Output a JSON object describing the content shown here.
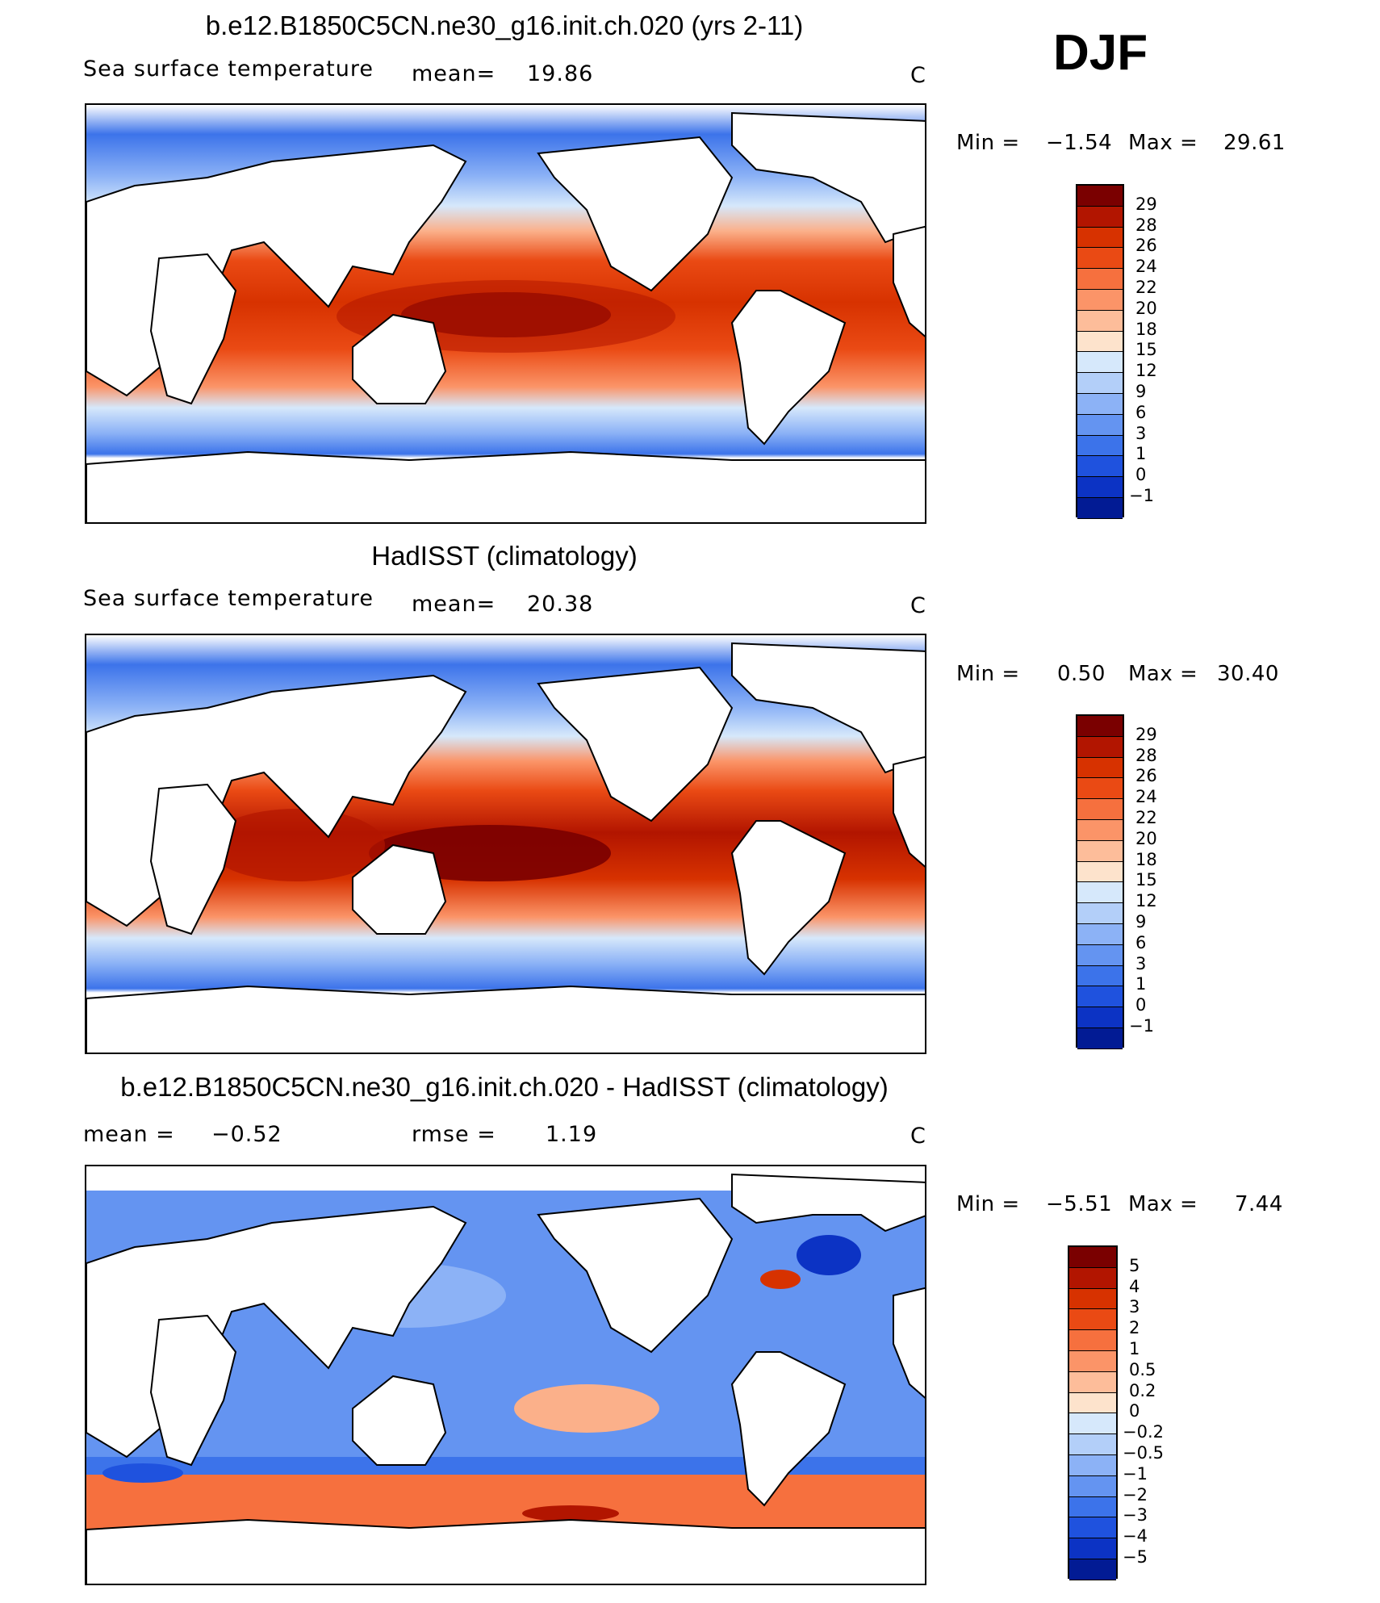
{
  "season": "DJF",
  "panels": [
    {
      "title": "b.e12.B1850C5CN.ne30_g16.init.ch.020 (yrs 2-11)",
      "left_label": "Sea surface temperature",
      "mid_label": "mean=",
      "mid_value": "19.86",
      "units": "C",
      "min_label": "Min =",
      "min_value": "−1.54",
      "max_label": "Max =",
      "max_value": "29.61",
      "colorbar": {
        "labels": [
          "29",
          "28",
          "26",
          "24",
          "22",
          "20",
          "18",
          "15",
          "12",
          "9",
          "6",
          "3",
          "1",
          "0",
          "−1"
        ],
        "colors": [
          "#7a0000",
          "#b21500",
          "#d73200",
          "#ea4a14",
          "#f6703e",
          "#fb9468",
          "#fdbd9a",
          "#fde3cc",
          "#d6e8fb",
          "#b3cff9",
          "#8cb2f6",
          "#6494f1",
          "#3c73ea",
          "#1f52de",
          "#0c33c4",
          "#021b94"
        ]
      }
    },
    {
      "title": "HadISST (climatology)",
      "left_label": "Sea surface temperature",
      "mid_label": "mean=",
      "mid_value": "20.38",
      "units": "C",
      "min_label": "Min =",
      "min_value": "0.50",
      "max_label": "Max =",
      "max_value": "30.40",
      "colorbar": {
        "labels": [
          "29",
          "28",
          "26",
          "24",
          "22",
          "20",
          "18",
          "15",
          "12",
          "9",
          "6",
          "3",
          "1",
          "0",
          "−1"
        ],
        "colors": [
          "#7a0000",
          "#b21500",
          "#d73200",
          "#ea4a14",
          "#f6703e",
          "#fb9468",
          "#fdbd9a",
          "#fde3cc",
          "#d6e8fb",
          "#b3cff9",
          "#8cb2f6",
          "#6494f1",
          "#3c73ea",
          "#1f52de",
          "#0c33c4",
          "#021b94"
        ]
      }
    },
    {
      "title": "b.e12.B1850C5CN.ne30_g16.init.ch.020 - HadISST (climatology)",
      "left_label": "mean =",
      "left_value": "−0.52",
      "mid_label": "rmse =",
      "mid_value": "1.19",
      "units": "C",
      "min_label": "Min =",
      "min_value": "−5.51",
      "max_label": "Max =",
      "max_value": "7.44",
      "colorbar": {
        "labels": [
          "5",
          "4",
          "3",
          "2",
          "1",
          "0.5",
          "0.2",
          "0",
          "−0.2",
          "−0.5",
          "−1",
          "−2",
          "−3",
          "−4",
          "−5"
        ],
        "colors": [
          "#7a0000",
          "#b21500",
          "#d73200",
          "#ea4a14",
          "#f6703e",
          "#fb9468",
          "#fdbd9a",
          "#fde3cc",
          "#d6e8fb",
          "#b3cff9",
          "#8cb2f6",
          "#6494f1",
          "#3c73ea",
          "#1f52de",
          "#0c33c4",
          "#021b94"
        ]
      }
    }
  ]
}
